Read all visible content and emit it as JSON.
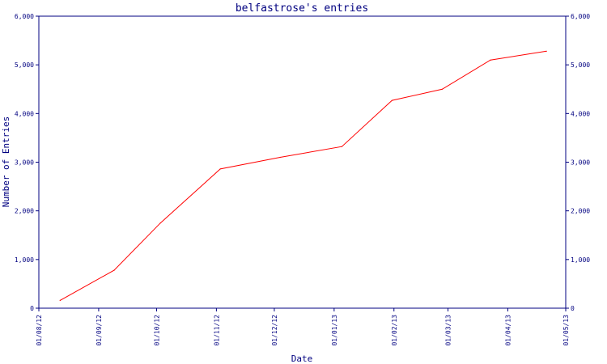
{
  "chart_data": {
    "type": "line",
    "title": "belfastrose's entries",
    "xlabel": "Date",
    "ylabel": "Number of Entries",
    "x_range": [
      "2012-08-01",
      "2013-05-01"
    ],
    "ylim": [
      0,
      6000
    ],
    "y_ticks": [
      0,
      1000,
      2000,
      3000,
      4000,
      5000,
      6000
    ],
    "y_tick_labels": [
      "0",
      "1,000",
      "2,000",
      "3,000",
      "4,000",
      "5,000",
      "6,000"
    ],
    "x_ticks": [
      "2012-08-01",
      "2012-09-01",
      "2012-10-01",
      "2012-11-01",
      "2012-12-01",
      "2013-01-01",
      "2013-02-01",
      "2013-03-01",
      "2013-04-01",
      "2013-05-01"
    ],
    "x_tick_labels": [
      "01/08/12",
      "01/09/12",
      "01/10/12",
      "01/11/12",
      "01/12/12",
      "01/01/13",
      "01/02/13",
      "01/03/13",
      "01/04/13",
      "01/05/13"
    ],
    "grid": false,
    "series": [
      {
        "color": "#ff0000",
        "points": [
          {
            "x": "2012-08-12",
            "y": 160
          },
          {
            "x": "2012-09-09",
            "y": 780
          },
          {
            "x": "2012-10-03",
            "y": 1750
          },
          {
            "x": "2012-11-03",
            "y": 2860
          },
          {
            "x": "2012-12-04",
            "y": 3100
          },
          {
            "x": "2013-01-05",
            "y": 3320
          },
          {
            "x": "2013-01-31",
            "y": 4270
          },
          {
            "x": "2013-02-26",
            "y": 4500
          },
          {
            "x": "2013-03-23",
            "y": 5100
          },
          {
            "x": "2013-04-21",
            "y": 5280
          }
        ]
      }
    ]
  },
  "colors": {
    "axis": "#000080",
    "line": "#ff0000",
    "background": "#ffffff"
  }
}
